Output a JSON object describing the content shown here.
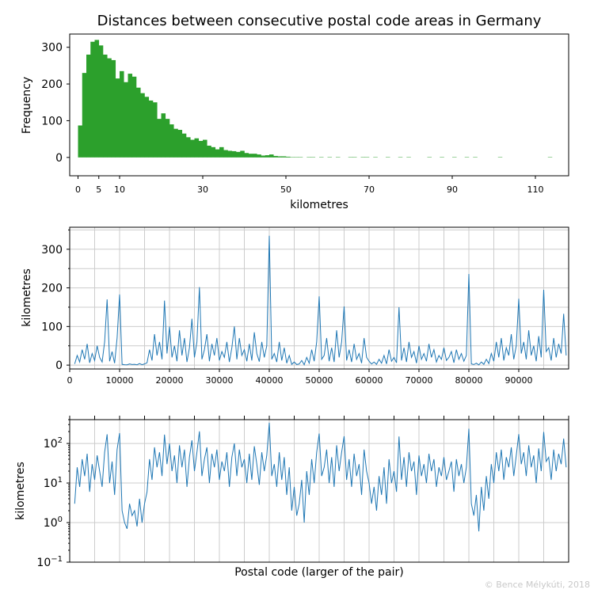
{
  "title": "Distances between consecutive postal code areas in Germany",
  "credit": "© Bence Mélykúti, 2018",
  "colors": {
    "histogram": "#2ca02c",
    "line": "#1f77b4",
    "grid": "#cccccc",
    "credit": "#c8c8c8"
  },
  "chart_data": [
    {
      "type": "bar",
      "subtype": "histogram",
      "xlabel": "kilometres",
      "ylabel": "Frequency",
      "xlim": [
        -2,
        118
      ],
      "ylim": [
        -50,
        336
      ],
      "xticks": [
        "0",
        "5",
        "10",
        "30",
        "50",
        "70",
        "90",
        "110"
      ],
      "yticks": [
        "0",
        "100",
        "200",
        "300"
      ],
      "grid": false,
      "bin_width_km": 1,
      "bin_start_km": 0,
      "values": [
        87,
        230,
        280,
        315,
        320,
        305,
        280,
        270,
        265,
        215,
        235,
        205,
        228,
        220,
        190,
        175,
        165,
        155,
        150,
        105,
        120,
        105,
        90,
        78,
        75,
        65,
        55,
        48,
        52,
        45,
        48,
        32,
        28,
        22,
        28,
        20,
        18,
        17,
        15,
        18,
        12,
        10,
        10,
        8,
        5,
        6,
        8,
        4,
        3,
        3,
        2,
        1,
        1,
        1,
        0,
        1,
        1,
        0,
        1,
        0,
        1,
        0,
        1,
        0,
        0,
        1,
        1,
        0,
        1,
        1,
        0,
        1,
        0,
        0,
        1,
        0,
        0,
        1,
        0,
        1,
        0,
        0,
        0,
        0,
        1,
        0,
        0,
        1,
        0,
        0,
        1,
        0,
        0,
        1,
        0,
        1,
        0,
        0,
        0,
        0,
        0,
        1,
        0,
        0,
        0,
        0,
        0,
        0,
        0,
        0,
        0,
        0,
        0,
        1,
        0,
        0,
        0,
        0
      ]
    },
    {
      "type": "line",
      "xlabel": "",
      "ylabel": "kilometres",
      "xlim": [
        0,
        100000
      ],
      "ylim": [
        -10,
        357
      ],
      "xticks": [
        "0",
        "10000",
        "20000",
        "30000",
        "40000",
        "50000",
        "60000",
        "70000",
        "80000",
        "90000"
      ],
      "yticks": [
        "0",
        "100",
        "200",
        "300"
      ],
      "grid": true,
      "x_start": 1000,
      "x_step": 500,
      "values": [
        3,
        25,
        8,
        40,
        15,
        55,
        6,
        30,
        12,
        50,
        20,
        8,
        60,
        170,
        10,
        35,
        5,
        70,
        183,
        2,
        1,
        0.7,
        3,
        1.5,
        2,
        0.8,
        4,
        1,
        3,
        6,
        40,
        12,
        80,
        25,
        60,
        15,
        167,
        30,
        100,
        20,
        50,
        10,
        90,
        25,
        70,
        8,
        45,
        120,
        20,
        60,
        202,
        15,
        40,
        80,
        10,
        55,
        25,
        70,
        12,
        35,
        20,
        60,
        8,
        45,
        100,
        15,
        70,
        25,
        40,
        10,
        55,
        12,
        85,
        30,
        9,
        60,
        20,
        50,
        335,
        15,
        30,
        8,
        60,
        12,
        45,
        5,
        25,
        2,
        8,
        1.5,
        3,
        12,
        1,
        20,
        5,
        40,
        10,
        60,
        178,
        15,
        25,
        70,
        10,
        45,
        8,
        90,
        20,
        60,
        152,
        12,
        40,
        8,
        55,
        15,
        30,
        5,
        70,
        20,
        10,
        3,
        8,
        2,
        15,
        5,
        25,
        3,
        40,
        10,
        20,
        6,
        150,
        12,
        45,
        8,
        60,
        20,
        35,
        5,
        50,
        15,
        30,
        10,
        55,
        20,
        40,
        8,
        25,
        15,
        45,
        12,
        20,
        35,
        6,
        40,
        15,
        30,
        10,
        25,
        236,
        3,
        1.5,
        5,
        0.6,
        8,
        2,
        15,
        4,
        30,
        10,
        60,
        20,
        70,
        12,
        45,
        25,
        80,
        15,
        50,
        172,
        30,
        60,
        15,
        90,
        25,
        50,
        10,
        75,
        20,
        195,
        35,
        45,
        12,
        70,
        20,
        55,
        30,
        133,
        25
      ]
    },
    {
      "type": "line",
      "yscale": "log",
      "xlabel": "Postal code (larger of the pair)",
      "ylabel": "kilometres",
      "xlim": [
        0,
        100000
      ],
      "ylim": [
        0.1,
        400
      ],
      "yticks": [
        "10^2",
        "10^1",
        "10^0",
        "10^-1"
      ],
      "grid": true,
      "same_data_as": "chart 2"
    }
  ]
}
